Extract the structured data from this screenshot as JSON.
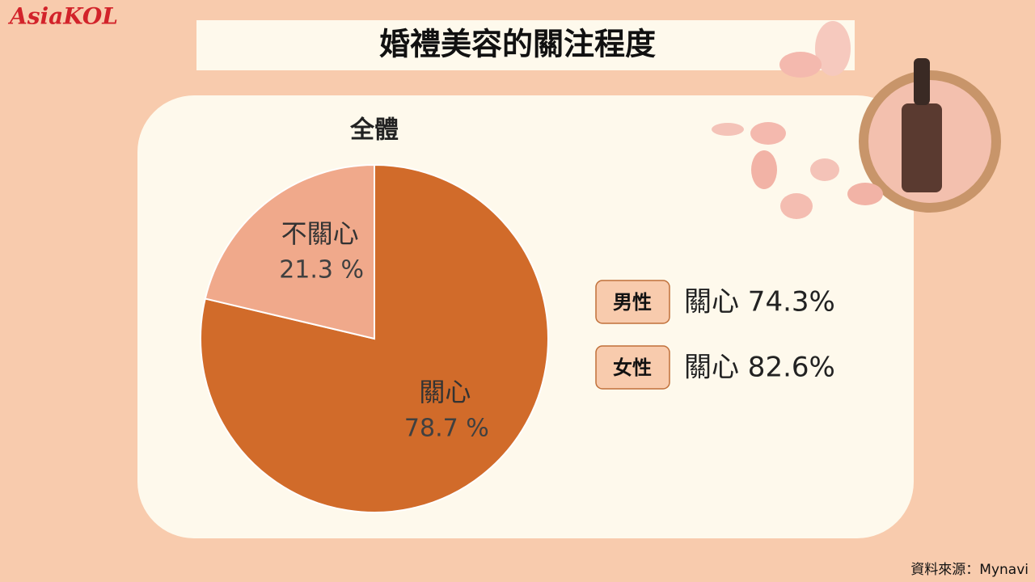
{
  "logo": "AsiaKOL",
  "header": {
    "title": "婚禮美容的關注程度"
  },
  "chart_data": {
    "type": "pie",
    "title": "全體",
    "categories": [
      "關心",
      "不關心"
    ],
    "values": [
      78.7,
      21.3
    ],
    "value_labels": [
      "78.7 %",
      "21.3 %"
    ],
    "colors": [
      "#d16b2a",
      "#f0a98b"
    ]
  },
  "breakdown": [
    {
      "group": "男性",
      "text": "關心 74.3%"
    },
    {
      "group": "女性",
      "text": "關心 82.6%"
    }
  ],
  "source": "資料來源：Mynavi"
}
